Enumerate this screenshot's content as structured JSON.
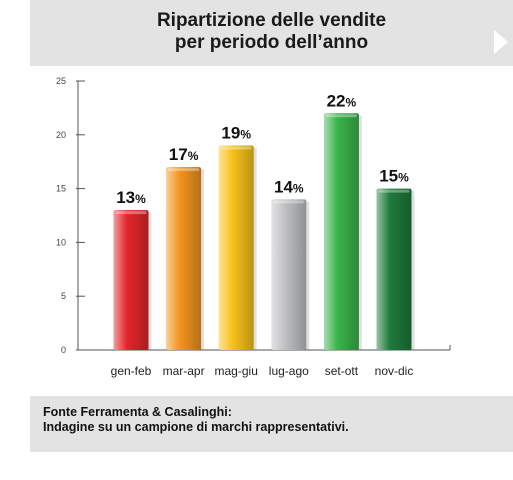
{
  "header": {
    "title_line1": "Ripartizione delle vendite",
    "title_line2": "per periodo dell’anno"
  },
  "footer": {
    "line1": "Fonte Ferramenta & Casalinghi:",
    "line2": "Indagine su un campione di marchi rappresentativi."
  },
  "chart_data": {
    "type": "bar",
    "categories": [
      "gen-feb",
      "mar-apr",
      "mag-giu",
      "lug-ago",
      "set-ott",
      "nov-dic"
    ],
    "values": [
      13,
      17,
      19,
      14,
      22,
      15
    ],
    "value_suffix": "%",
    "ylim": [
      0,
      25
    ],
    "yticks": [
      "0",
      "5",
      "10",
      "15",
      "20",
      "25"
    ],
    "grid": false,
    "legend": "none",
    "colors": [
      "#e3262b",
      "#f3941f",
      "#f8c21a",
      "#c0c1c3",
      "#3bb44a",
      "#1f7a3c"
    ]
  }
}
